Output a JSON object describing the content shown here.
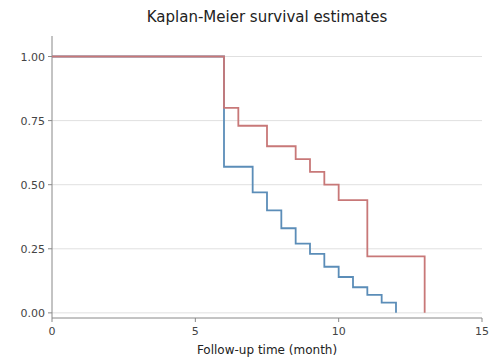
{
  "chart_data": {
    "type": "line",
    "title": "Kaplan-Meier survival estimates",
    "xlabel": "Follow-up time (month)",
    "xlim": [
      0,
      15
    ],
    "ylim": [
      -0.02,
      1.08
    ],
    "xticks": [
      0,
      5,
      10,
      15
    ],
    "yticks": [
      {
        "value": 0.0,
        "label": "0.00"
      },
      {
        "value": 0.25,
        "label": "0.25"
      },
      {
        "value": 0.5,
        "label": "0.50"
      },
      {
        "value": 0.75,
        "label": "0.75"
      },
      {
        "value": 1.0,
        "label": "1.00"
      }
    ],
    "grid": true,
    "series": [
      {
        "color": "#5b8db8",
        "x": [
          0,
          6,
          6,
          7,
          7,
          7.5,
          7.5,
          8,
          8,
          8.5,
          8.5,
          9,
          9,
          9.5,
          9.5,
          10,
          10,
          10.5,
          10.5,
          11,
          11,
          11.5,
          11.5,
          12,
          12
        ],
        "values": [
          1.0,
          1.0,
          0.57,
          0.57,
          0.47,
          0.47,
          0.4,
          0.4,
          0.33,
          0.33,
          0.27,
          0.27,
          0.23,
          0.23,
          0.18,
          0.18,
          0.14,
          0.14,
          0.1,
          0.1,
          0.07,
          0.07,
          0.04,
          0.04,
          0.0
        ]
      },
      {
        "color": "#c87878",
        "x": [
          0,
          6,
          6,
          6.5,
          6.5,
          7.5,
          7.5,
          8.5,
          8.5,
          9,
          9,
          9.5,
          9.5,
          10,
          10,
          11,
          11,
          13,
          13
        ],
        "values": [
          1.0,
          1.0,
          0.8,
          0.8,
          0.73,
          0.73,
          0.65,
          0.65,
          0.6,
          0.6,
          0.55,
          0.55,
          0.5,
          0.5,
          0.44,
          0.44,
          0.22,
          0.22,
          0.0
        ]
      }
    ]
  }
}
